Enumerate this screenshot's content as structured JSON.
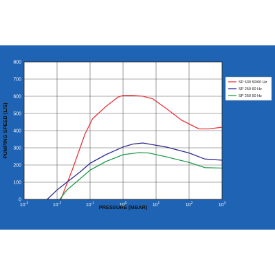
{
  "chart_data": {
    "type": "line",
    "title": "",
    "xlabel": "PRESSURE (MBAR)",
    "ylabel": "PUMPING SPEED (L/S)",
    "x_scale": "log",
    "xlim": [
      0.001,
      1000
    ],
    "ylim": [
      0,
      800
    ],
    "grid": true,
    "legend_position": "right",
    "x_ticks": [
      {
        "value": 0.001,
        "base": "10",
        "exp": "-3"
      },
      {
        "value": 0.01,
        "base": "10",
        "exp": "-2"
      },
      {
        "value": 0.1,
        "base": "10",
        "exp": "-1"
      },
      {
        "value": 1,
        "base": "10",
        "exp": "0"
      },
      {
        "value": 10,
        "base": "10",
        "exp": "1"
      },
      {
        "value": 100,
        "base": "10",
        "exp": "2"
      },
      {
        "value": 1000,
        "base": "10",
        "exp": "3"
      }
    ],
    "y_ticks": [
      0,
      100,
      200,
      300,
      400,
      500,
      600,
      700,
      800
    ],
    "series": [
      {
        "name": "SP 630 50/60 Hz",
        "color": "#e8343a",
        "points": [
          [
            0.013,
            0
          ],
          [
            0.03,
            180
          ],
          [
            0.07,
            380
          ],
          [
            0.12,
            470
          ],
          [
            0.3,
            540
          ],
          [
            0.7,
            595
          ],
          [
            1,
            605
          ],
          [
            2,
            605
          ],
          [
            4,
            600
          ],
          [
            8,
            585
          ],
          [
            20,
            530
          ],
          [
            60,
            460
          ],
          [
            200,
            410
          ],
          [
            400,
            410
          ],
          [
            1000,
            420
          ]
        ]
      },
      {
        "name": "SP 250 60 Hz",
        "color": "#2d2a8c",
        "points": [
          [
            0.005,
            0
          ],
          [
            0.01,
            55
          ],
          [
            0.02,
            100
          ],
          [
            0.05,
            160
          ],
          [
            0.1,
            210
          ],
          [
            0.3,
            260
          ],
          [
            1,
            305
          ],
          [
            2,
            322
          ],
          [
            4,
            328
          ],
          [
            7,
            320
          ],
          [
            20,
            305
          ],
          [
            100,
            270
          ],
          [
            300,
            235
          ],
          [
            1000,
            228
          ]
        ]
      },
      {
        "name": "SP 250 50 Hz",
        "color": "#1f9a4a",
        "points": [
          [
            0.012,
            0
          ],
          [
            0.02,
            55
          ],
          [
            0.05,
            120
          ],
          [
            0.1,
            170
          ],
          [
            0.3,
            220
          ],
          [
            1,
            260
          ],
          [
            3,
            272
          ],
          [
            6,
            270
          ],
          [
            20,
            248
          ],
          [
            100,
            215
          ],
          [
            300,
            185
          ],
          [
            1000,
            182
          ]
        ]
      }
    ]
  }
}
